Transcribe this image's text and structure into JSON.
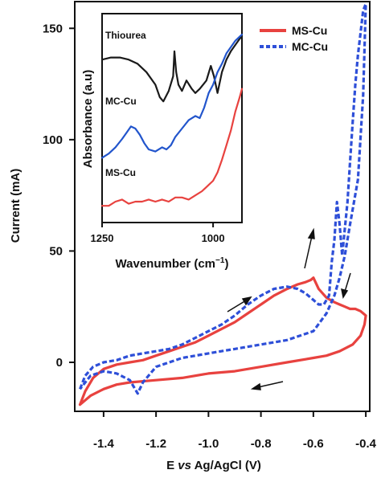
{
  "chart_data": [
    {
      "type": "line",
      "title": "",
      "xlabel": "E vs Ag/AgCl (V)",
      "xlabel_parts": [
        "E ",
        "vs",
        " Ag/AgCl (V)"
      ],
      "ylabel": "Current (mA)",
      "xlim": [
        -1.51,
        -0.385
      ],
      "ylim": [
        -22,
        162
      ],
      "x_ticks": [
        -1.4,
        -1.2,
        -1.0,
        -0.8,
        -0.6,
        -0.4
      ],
      "x_tick_labels": [
        "-1.4",
        "-1.2",
        "-1.0",
        "-0.8",
        "-0.6",
        "-0.4"
      ],
      "y_ticks": [
        0,
        50,
        100,
        150
      ],
      "y_tick_labels": [
        "0",
        "50",
        "100",
        "150"
      ],
      "grid": false,
      "legend_position": "top-right",
      "series": [
        {
          "name": "MS-Cu",
          "color": "#e8423f",
          "style": "solid",
          "x": [
            -1.49,
            -1.47,
            -1.44,
            -1.4,
            -1.35,
            -1.3,
            -1.25,
            -1.2,
            -1.15,
            -1.1,
            -1.05,
            -1.0,
            -0.95,
            -0.9,
            -0.85,
            -0.8,
            -0.75,
            -0.7,
            -0.66,
            -0.63,
            -0.61,
            -0.6,
            -0.58,
            -0.55,
            -0.52,
            -0.5,
            -0.48,
            -0.46,
            -0.44,
            -0.42,
            -0.41,
            -0.4,
            -0.405,
            -0.42,
            -0.45,
            -0.5,
            -0.55,
            -0.6,
            -0.7,
            -0.8,
            -0.9,
            -1.0,
            -1.1,
            -1.2,
            -1.3,
            -1.35,
            -1.4,
            -1.45,
            -1.49
          ],
          "y": [
            -19,
            -13,
            -7,
            -3,
            -1,
            0,
            1,
            3,
            5,
            7,
            9,
            12,
            15,
            18,
            22,
            26,
            30,
            33,
            35,
            36,
            37,
            38,
            33,
            29,
            27,
            26,
            25,
            24,
            24,
            23,
            22,
            21,
            17,
            12,
            8,
            5,
            3,
            2,
            0,
            -2,
            -4,
            -5,
            -7,
            -8,
            -9,
            -10,
            -12,
            -15,
            -19
          ]
        },
        {
          "name": "MC-Cu",
          "color": "#2e4fd8",
          "style": "dashed",
          "x": [
            -1.49,
            -1.47,
            -1.44,
            -1.4,
            -1.35,
            -1.3,
            -1.25,
            -1.2,
            -1.15,
            -1.1,
            -1.05,
            -1.0,
            -0.95,
            -0.9,
            -0.85,
            -0.8,
            -0.75,
            -0.7,
            -0.66,
            -0.63,
            -0.6,
            -0.58,
            -0.56,
            -0.54,
            -0.53,
            -0.52,
            -0.51,
            -0.5,
            -0.49,
            -0.48,
            -0.47,
            -0.46,
            -0.45,
            -0.44,
            -0.43,
            -0.42,
            -0.41,
            -0.4,
            -0.41,
            -0.43,
            -0.46,
            -0.48,
            -0.5,
            -0.52,
            -0.55,
            -0.6,
            -0.7,
            -0.8,
            -0.9,
            -1.0,
            -1.1,
            -1.2,
            -1.25,
            -1.27,
            -1.3,
            -1.35,
            -1.4,
            -1.45,
            -1.49
          ],
          "y": [
            -12,
            -6,
            -2,
            0,
            1,
            3,
            4,
            5,
            6,
            8,
            11,
            14,
            17,
            21,
            26,
            30,
            33,
            34,
            33,
            31,
            28,
            26,
            26,
            30,
            45,
            55,
            72,
            62,
            48,
            60,
            72,
            90,
            108,
            125,
            138,
            148,
            158,
            161,
            120,
            82,
            62,
            48,
            38,
            30,
            22,
            14,
            10,
            8,
            6,
            4,
            2,
            -2,
            -9,
            -14,
            -8,
            -5,
            -4,
            -6,
            -12
          ]
        }
      ],
      "legend": [
        "MS-Cu",
        "MC-Cu"
      ]
    },
    {
      "type": "line",
      "title": "",
      "xlabel": "Wavenumber (cm⁻¹)",
      "xlabel_text": "Wavenumber (cm",
      "xlabel_sup": "−1",
      "xlabel_close": ")",
      "ylabel": "Absorbance (a.u)",
      "xlim": [
        1250,
        935
      ],
      "x_ticks": [
        1250,
        1000
      ],
      "x_tick_labels": [
        "1250",
        "1000"
      ],
      "grid": false,
      "series": [
        {
          "name": "Thiourea",
          "color": "#1a1a1a",
          "x": [
            1250,
            1230,
            1210,
            1190,
            1170,
            1150,
            1130,
            1120,
            1112,
            1100,
            1090,
            1087,
            1083,
            1078,
            1070,
            1060,
            1048,
            1040,
            1030,
            1015,
            1005,
            998,
            990,
            980,
            970,
            960,
            950,
            940,
            935
          ],
          "y": [
            0.78,
            0.79,
            0.79,
            0.78,
            0.76,
            0.72,
            0.66,
            0.6,
            0.58,
            0.63,
            0.7,
            0.82,
            0.72,
            0.66,
            0.63,
            0.68,
            0.64,
            0.62,
            0.64,
            0.68,
            0.75,
            0.7,
            0.62,
            0.72,
            0.78,
            0.82,
            0.85,
            0.88,
            0.89
          ]
        },
        {
          "name": "MC-Cu",
          "color": "#2255cc",
          "x": [
            1250,
            1235,
            1220,
            1205,
            1195,
            1185,
            1175,
            1165,
            1155,
            1145,
            1130,
            1115,
            1105,
            1095,
            1085,
            1070,
            1055,
            1040,
            1030,
            1020,
            1010,
            1000,
            990,
            980,
            970,
            960,
            950,
            940,
            935
          ],
          "y": [
            0.31,
            0.33,
            0.36,
            0.4,
            0.43,
            0.46,
            0.45,
            0.42,
            0.38,
            0.35,
            0.34,
            0.36,
            0.35,
            0.37,
            0.41,
            0.45,
            0.49,
            0.51,
            0.5,
            0.55,
            0.62,
            0.66,
            0.72,
            0.76,
            0.81,
            0.84,
            0.87,
            0.89,
            0.9
          ]
        },
        {
          "name": "MS-Cu",
          "color": "#e8423f",
          "x": [
            1250,
            1235,
            1220,
            1205,
            1190,
            1175,
            1160,
            1145,
            1130,
            1115,
            1100,
            1085,
            1070,
            1055,
            1040,
            1025,
            1010,
            1000,
            990,
            980,
            970,
            960,
            950,
            940,
            935
          ],
          "y": [
            0.08,
            0.08,
            0.1,
            0.11,
            0.09,
            0.1,
            0.1,
            0.11,
            0.1,
            0.11,
            0.1,
            0.12,
            0.12,
            0.11,
            0.13,
            0.15,
            0.18,
            0.2,
            0.24,
            0.3,
            0.37,
            0.44,
            0.53,
            0.6,
            0.64
          ]
        }
      ],
      "curve_labels": [
        "Thiourea",
        "MC-Cu",
        "MS-Cu"
      ]
    }
  ]
}
